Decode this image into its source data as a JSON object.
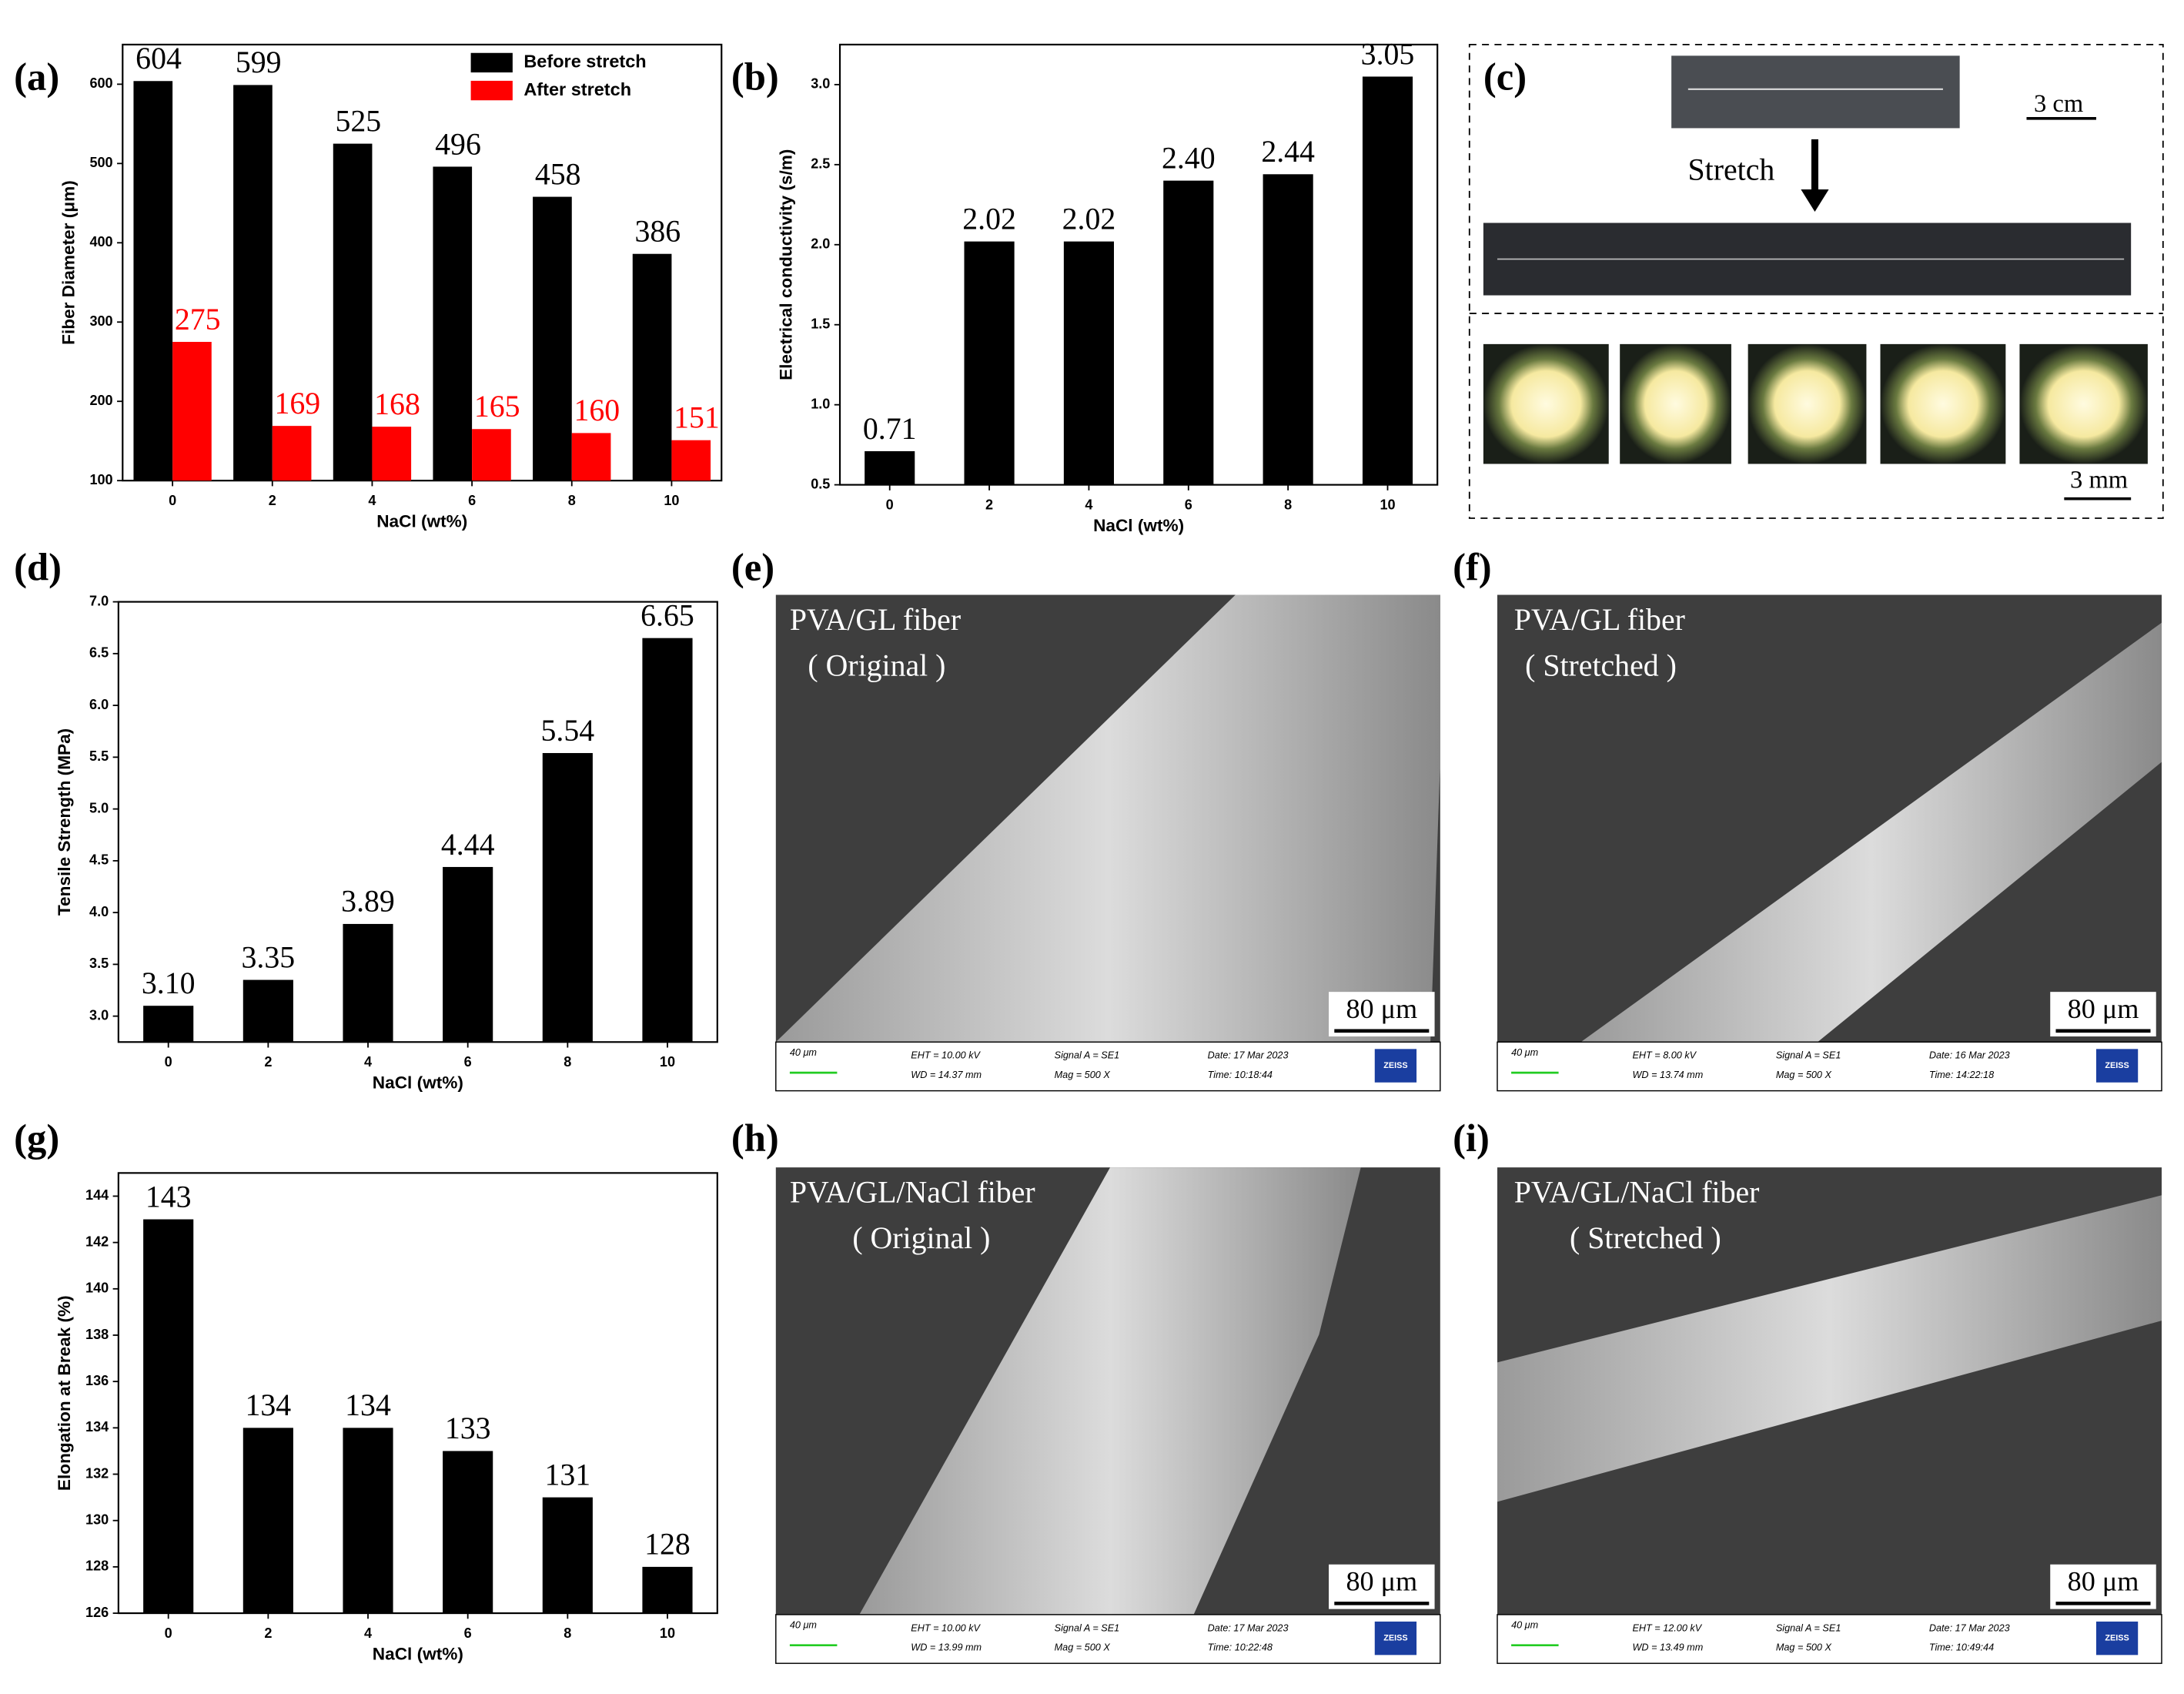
{
  "chart_data": [
    {
      "type": "bar",
      "categories": [
        "0",
        "2",
        "4",
        "6",
        "8",
        "10"
      ],
      "xlabel": "NaCl (wt%)",
      "ylabel": "Fiber Diameter (μm)",
      "series": [
        {
          "name": "Before stretch",
          "color": "#000000",
          "values": [
            604,
            599,
            525,
            496,
            458,
            386
          ]
        },
        {
          "name": "After stretch",
          "color": "#ff0000",
          "values": [
            275,
            169,
            168,
            165,
            160,
            151
          ]
        }
      ],
      "ylim": [
        100,
        650
      ],
      "yticks": [
        100,
        200,
        300,
        400,
        500,
        600
      ],
      "legend": "upper right"
    },
    {
      "type": "bar",
      "categories": [
        "0",
        "2",
        "4",
        "6",
        "8",
        "10"
      ],
      "xlabel": "NaCl (wt%)",
      "ylabel": "Electrical conductivity (s/m)",
      "values": [
        0.71,
        2.02,
        2.02,
        2.4,
        2.44,
        3.05
      ],
      "value_labels": [
        "0.71",
        "2.02",
        "2.02",
        "2.40",
        "2.44",
        "3.05"
      ],
      "color": "#000000",
      "ylim": [
        0.5,
        3.25
      ],
      "yticks": [
        0.5,
        {
          "value": 1,
          "label": "1.0"
        },
        1.5,
        {
          "value": 2,
          "label": "2.0"
        },
        2.5,
        {
          "value": 3,
          "label": "3.0"
        }
      ]
    },
    {
      "type": "bar",
      "categories": [
        "0",
        "2",
        "4",
        "6",
        "8",
        "10"
      ],
      "xlabel": "NaCl (wt%)",
      "ylabel": "Tensile Strength (MPa)",
      "values": [
        3.1,
        3.35,
        3.89,
        4.44,
        5.54,
        6.65
      ],
      "value_labels": [
        "3.10",
        "3.35",
        "3.89",
        "4.44",
        "5.54",
        "6.65"
      ],
      "color": "#000000",
      "ylim": [
        2.75,
        7
      ],
      "yticks": [
        {
          "value": 3,
          "label": "3.0"
        },
        3.5,
        {
          "value": 4,
          "label": "4.0"
        },
        4.5,
        {
          "value": 5,
          "label": "5.0"
        },
        5.5,
        {
          "value": 6,
          "label": "6.0"
        },
        6.5,
        {
          "value": 7,
          "label": "7.0"
        }
      ]
    },
    {
      "type": "bar",
      "categories": [
        "0",
        "2",
        "4",
        "6",
        "8",
        "10"
      ],
      "xlabel": "NaCl (wt%)",
      "ylabel": "Elongation at Break (%)",
      "values": [
        143,
        134,
        134,
        133,
        131,
        128
      ],
      "color": "#000000",
      "ylim": [
        126,
        145
      ],
      "yticks": [
        126,
        128,
        130,
        132,
        134,
        136,
        138,
        140,
        142,
        144
      ]
    }
  ],
  "panel_labels": [
    "(a)",
    "(b)",
    "(c)",
    "(d)",
    "(e)",
    "(f)",
    "(g)",
    "(h)",
    "(i)"
  ],
  "photo": {
    "scale_top": "3 cm",
    "arrow_label": "Stretch",
    "scale_bottom": "3 mm"
  },
  "sem": [
    {
      "title": "PVA/GL fiber",
      "subtitle": "( Original )",
      "scale": "80 μm",
      "bar": "40 μm",
      "eht": "EHT = 10.00 kV",
      "wd": "WD = 14.37 mm",
      "signal": "Signal A = SE1",
      "mag": "Mag =   500 X",
      "date": "Date: 17 Mar 2023",
      "time": "Time: 10:18:44",
      "logo": "ZEISS"
    },
    {
      "title": "PVA/GL fiber",
      "subtitle": "( Stretched )",
      "scale": "80 μm",
      "bar": "40 μm",
      "eht": "EHT =  8.00 kV",
      "wd": "WD = 13.74 mm",
      "signal": "Signal A = SE1",
      "mag": "Mag =   500 X",
      "date": "Date: 16 Mar 2023",
      "time": "Time: 14:22:18",
      "logo": "ZEISS"
    },
    {
      "title": "PVA/GL/NaCl fiber",
      "subtitle": "( Original )",
      "scale": "80 μm",
      "bar": "40 μm",
      "eht": "EHT = 10.00 kV",
      "wd": "WD = 13.99 mm",
      "signal": "Signal A = SE1",
      "mag": "Mag =   500 X",
      "date": "Date: 17 Mar 2023",
      "time": "Time: 10:22:48",
      "logo": "ZEISS"
    },
    {
      "title": "PVA/GL/NaCl fiber",
      "subtitle": "( Stretched )",
      "scale": "80 μm",
      "bar": "40 μm",
      "eht": "EHT = 12.00 kV",
      "wd": "WD = 13.49 mm",
      "signal": "Signal A = SE1",
      "mag": "Mag =   500 X",
      "date": "Date: 17 Mar 2023",
      "time": "Time: 10:49:44",
      "logo": "ZEISS"
    }
  ]
}
